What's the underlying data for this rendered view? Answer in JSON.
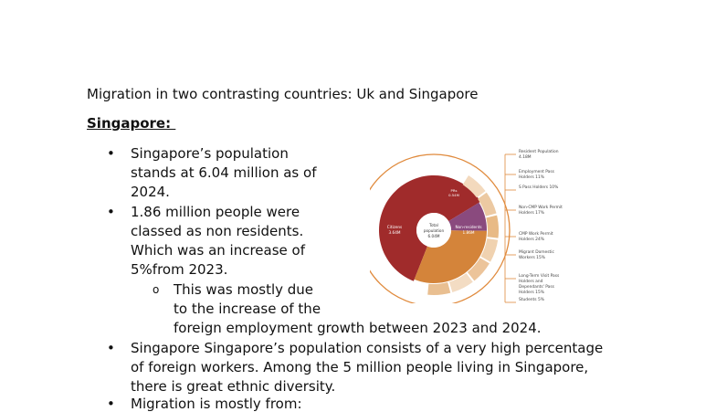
{
  "document": {
    "title": "Migration in two contrasting countries: Uk and  Singapore",
    "heading": "Singapore: ",
    "bullet_symbol": "•",
    "sub_bullet_symbol": "o",
    "lines": [
      "Singapore’s population",
      "stands at 6.04 million as of",
      "2024.",
      "1.86 million people were",
      "classed as non residents.",
      "Which was an increase of",
      "5%from 2023.",
      "This was mostly due",
      "to the increase of the",
      "foreign employment growth between 2023 and 2024.",
      "Singapore Singapore’s population consists of a very high percentage",
      "of foreign workers. Among the 5 million people living in Singapore,",
      "there is great ethnic diversity.",
      "Migration is mostly from:"
    ]
  },
  "chart_data": {
    "type": "pie",
    "center_label": "Total population 6.04M",
    "slices": [
      {
        "label": "Citizens 3.64M",
        "value": 3.64,
        "color": "#a02b2b"
      },
      {
        "label": "Non-residents 1.86M",
        "value": 1.86,
        "color": "#d4843a"
      },
      {
        "label": "PRs 0.54M",
        "value": 0.54,
        "color": "#8a4a7e"
      }
    ],
    "annotations": [
      "Resident Population 4.18M",
      "Employment Pass Holders 11%",
      "S Pass Holders 10%",
      "Non-CMP Work Permit Holders 17%",
      "CMP Work Permit Holders 24%",
      "Migrant Domestic Workers 15%",
      "Long-Term Visit Pass Holders and Dependants' Pass Holders 15%",
      "Students 5%"
    ],
    "colors": {
      "ring": "#e08a3c",
      "text": "#444444"
    }
  }
}
